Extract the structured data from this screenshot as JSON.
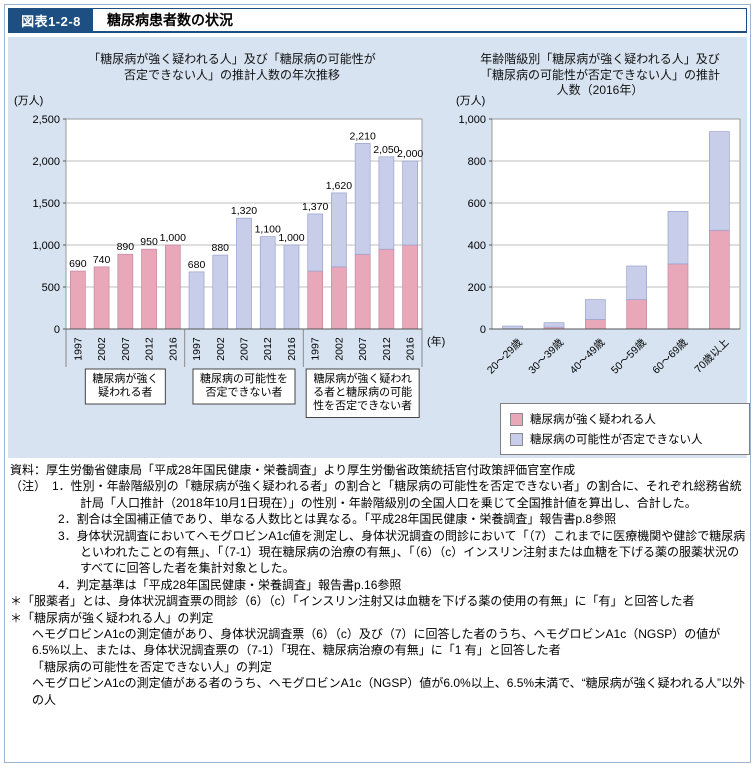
{
  "header": {
    "fig_label": "図表1-2-8",
    "title": "糖尿病患者数の状況"
  },
  "colors": {
    "panel_bg": "#d7e3f1",
    "header_navy": "#1d4f82",
    "strongly_suspected_pink": "#e9a8ba",
    "cannot_deny_lavender": "#c8cee9"
  },
  "chart_data": [
    {
      "type": "bar",
      "title_lines": [
        "「糖尿病が強く疑われる人」及び「糖尿病の可能性が",
        "否定できない人」の推計人数の年次推移"
      ],
      "unit": "(万人)",
      "xlabel": "(年)",
      "ylim": [
        0,
        2500
      ],
      "yticks": [
        0,
        500,
        1000,
        1500,
        2000,
        2500
      ],
      "grid": true,
      "categories": [
        "1997",
        "2002",
        "2007",
        "2012",
        "2016"
      ],
      "groups": [
        {
          "type": "single",
          "series": "糖尿病が強く疑われる者",
          "label_lines": [
            "糖尿病が強く",
            "疑われる者"
          ],
          "color": "#e9a8ba",
          "values": [
            690,
            740,
            890,
            950,
            1000
          ]
        },
        {
          "type": "single",
          "series": "糖尿病の可能性を否定できない者",
          "label_lines": [
            "糖尿病の可能性を",
            "否定できない者"
          ],
          "color": "#c8cee9",
          "values": [
            680,
            880,
            1320,
            1100,
            1000
          ]
        },
        {
          "type": "stacked",
          "series": "糖尿病が強く疑われる者と糖尿病の可能性を否定できない者",
          "label_lines": [
            "糖尿病が強く疑われ",
            "る者と糖尿病の可能",
            "性を否定できない者"
          ],
          "pink_values": [
            690,
            740,
            890,
            950,
            1000
          ],
          "lavender_values": [
            680,
            880,
            1320,
            1100,
            1000
          ],
          "total_labels": [
            1370,
            1620,
            2210,
            2050,
            2000
          ]
        }
      ]
    },
    {
      "type": "stacked-bar",
      "title_lines": [
        "年齢階級別「糖尿病が強く疑われる人」及び",
        "「糖尿病の可能性が否定できない人」の推計",
        "人数（2016年）"
      ],
      "unit": "(万人)",
      "ylim": [
        0,
        1000
      ],
      "yticks": [
        0,
        200,
        400,
        600,
        800,
        1000
      ],
      "grid": true,
      "categories": [
        "20～29歳",
        "30～39歳",
        "40～49歳",
        "50～59歳",
        "60～69歳",
        "70歳以上"
      ],
      "series": [
        {
          "name": "糖尿病が強く疑われる人",
          "color": "#e9a8ba",
          "values": [
            1,
            9,
            45,
            140,
            310,
            470
          ]
        },
        {
          "name": "糖尿病の可能性が否定できない人",
          "color": "#c8cee9",
          "values": [
            13,
            21,
            95,
            160,
            250,
            470
          ]
        }
      ],
      "legend_position": "bottom-right"
    }
  ],
  "legend": {
    "items": [
      {
        "label": "糖尿病が強く疑われる人",
        "color": "#e9a8ba"
      },
      {
        "label": "糖尿病の可能性が否定できない人",
        "color": "#c8cee9"
      }
    ]
  },
  "notes": [
    {
      "style": "source",
      "text": "資料：厚生労働省健康局「平成28年国民健康・栄養調査」より厚生労働省政策統括官付政策評価官室作成"
    },
    {
      "style": "note-first",
      "text": "（注）　1．性別・年齢階級別の「糖尿病が強く疑われる者」の割合と「糖尿病の可能性を否定できない者」の割合に、それぞれ総務省統計局「人口推計（2018年10月1日現在）」の性別・年齢階級別の全国人口を乗じて全国推計値を算出し、合計した。"
    },
    {
      "style": "note",
      "text": "2．割合は全国補正値であり、単なる人数比とは異なる。「平成28年国民健康・栄養調査」報告書p.8参照"
    },
    {
      "style": "note",
      "text": "3．身体状況調査においてヘモグロビンA1c値を測定し、身体状況調査の問診において「（7）これまでに医療機関や健診で糖尿病といわれたことの有無」、「（7-1）現在糖尿病の治療の有無」、「（6）（c）インスリン注射または血糖を下げる薬の服薬状況のすべてに回答した者を集計対象とした。"
    },
    {
      "style": "note",
      "text": "4．判定基準は「平成28年国民健康・栄養調査」報告書p.16参照"
    },
    {
      "style": "star",
      "text": "＊「服薬者」とは、身体状況調査票の問診（6）（c）「インスリン注射又は血糖を下げる薬の使用の有無」に「有」と回答した者"
    },
    {
      "style": "star",
      "text": "＊「糖尿病が強く疑われる人」の判定"
    },
    {
      "style": "sub",
      "text": "ヘモグロビンA1cの測定値があり、身体状況調査票（6）（c）及び（7）に回答した者のうち、ヘモグロビンA1c（NGSP）の値が6.5%以上、または、身体状況調査票の（7-1）「現在、糖尿病治療の有無」に「1 有」と回答した者"
    },
    {
      "style": "sub",
      "text": "「糖尿病の可能性を否定できない人」の判定"
    },
    {
      "style": "sub",
      "text": "ヘモグロビンA1cの測定値がある者のうち、ヘモグロビンA1c（NGSP）値が6.0%以上、6.5%未満で、“糖尿病が強く疑われる人”以外の人"
    }
  ]
}
